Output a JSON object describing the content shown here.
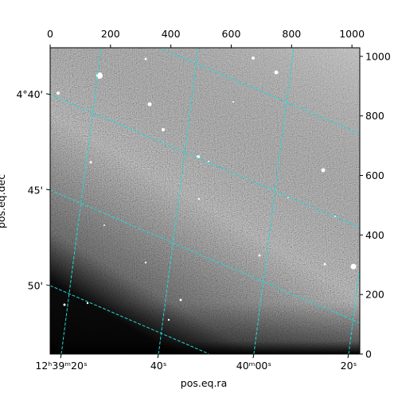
{
  "chart_data": {
    "type": "image",
    "xlabel": "pos.eq.ra",
    "ylabel": "pos.eq.dec",
    "xlim": [
      0,
      1026
    ],
    "ylim": [
      0,
      1029
    ],
    "xticks": [
      0,
      200,
      400,
      600,
      800,
      1000
    ],
    "yticks": [
      0,
      200,
      400,
      600,
      800,
      1000
    ],
    "ra_ticks": [
      {
        "value": 37,
        "label": "12ʰ39ᵐ20ˢ"
      },
      {
        "value": 359,
        "label": "40ˢ"
      },
      {
        "value": 675,
        "label": "40ᵐ00ˢ"
      },
      {
        "value": 989,
        "label": "20ˢ"
      }
    ],
    "dec_ticks": [
      {
        "value": 872,
        "label": "4°40'"
      },
      {
        "value": 551,
        "label": "45'"
      },
      {
        "value": 230,
        "label": "50'"
      }
    ],
    "grid_color": "#22d8d8"
  }
}
